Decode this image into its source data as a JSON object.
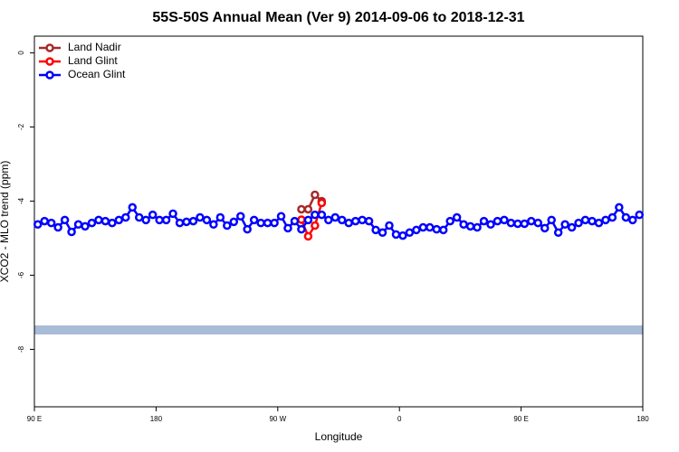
{
  "chart_data": {
    "type": "line",
    "title": "55S-50S Annual Mean (Ver 9)   2014-09-06 to 2018-12-31",
    "x_label": "Longitude",
    "y_label": "XCO2 - MLO trend (ppm)",
    "xlim": [
      90,
      540
    ],
    "xticks": [
      {
        "value": 90,
        "label": "90 E"
      },
      {
        "value": 180,
        "label": "180"
      },
      {
        "value": 270,
        "label": "90 W"
      },
      {
        "value": 360,
        "label": "0"
      },
      {
        "value": 450,
        "label": "90 E"
      },
      {
        "value": 540,
        "label": "180"
      }
    ],
    "ylim": [
      -9.55,
      0.45
    ],
    "yticks": [
      0,
      -2,
      -4,
      -6,
      -8
    ],
    "legend": "top-left",
    "series": [
      {
        "name": "Land Nadir",
        "color": "#a52a2a",
        "x": [
          287.5,
          292.5,
          297.5,
          302.5
        ],
        "values": [
          -4.22,
          -4.22,
          -3.83,
          -4.0
        ]
      },
      {
        "name": "Land Glint",
        "color": "#ff0000",
        "x": [
          287.5,
          292.5,
          297.5,
          302.5
        ],
        "values": [
          -4.5,
          -4.95,
          -4.66,
          -4.05
        ]
      },
      {
        "name": "Ocean Glint",
        "color": "#0000ff",
        "x": [
          92.5,
          97.5,
          102.5,
          107.5,
          112.5,
          117.5,
          122.5,
          127.5,
          132.5,
          137.5,
          142.5,
          147.5,
          152.5,
          157.5,
          162.5,
          167.5,
          172.5,
          177.5,
          182.5,
          187.5,
          192.5,
          197.5,
          202.5,
          207.5,
          212.5,
          217.5,
          222.5,
          227.5,
          232.5,
          237.5,
          242.5,
          247.5,
          252.5,
          257.5,
          262.5,
          267.5,
          272.5,
          277.5,
          282.5,
          287.5,
          292.5,
          297.5,
          302.5,
          307.5,
          312.5,
          317.5,
          322.5,
          327.5,
          332.5,
          337.5,
          342.5,
          347.5,
          352.5,
          357.5,
          362.5,
          367.5,
          372.5,
          377.5,
          382.5,
          387.5,
          392.5,
          397.5,
          402.5,
          407.5,
          412.5,
          417.5,
          422.5,
          427.5,
          432.5,
          437.5,
          442.5,
          447.5,
          452.5,
          457.5,
          462.5,
          467.5,
          472.5,
          477.5,
          482.5,
          487.5,
          492.5,
          497.5,
          502.5,
          507.5,
          512.5,
          517.5,
          522.5,
          527.5,
          532.5,
          537.5
        ],
        "values": [
          -4.63,
          -4.54,
          -4.59,
          -4.71,
          -4.51,
          -4.83,
          -4.63,
          -4.68,
          -4.59,
          -4.51,
          -4.54,
          -4.59,
          -4.51,
          -4.44,
          -4.17,
          -4.44,
          -4.51,
          -4.37,
          -4.51,
          -4.51,
          -4.34,
          -4.59,
          -4.56,
          -4.54,
          -4.44,
          -4.51,
          -4.63,
          -4.44,
          -4.66,
          -4.56,
          -4.41,
          -4.76,
          -4.51,
          -4.59,
          -4.59,
          -4.59,
          -4.41,
          -4.73,
          -4.54,
          -4.76,
          -4.51,
          -4.37,
          -4.37,
          -4.51,
          -4.44,
          -4.51,
          -4.59,
          -4.54,
          -4.51,
          -4.54,
          -4.78,
          -4.85,
          -4.66,
          -4.9,
          -4.93,
          -4.85,
          -4.78,
          -4.71,
          -4.71,
          -4.76,
          -4.78,
          -4.54,
          -4.44,
          -4.63,
          -4.68,
          -4.71,
          -4.54,
          -4.63,
          -4.54,
          -4.51,
          -4.59,
          -4.61,
          -4.61,
          -4.54,
          -4.59,
          -4.73,
          -4.51,
          -4.85,
          -4.63,
          -4.71,
          -4.59,
          -4.51,
          -4.54,
          -4.59,
          -4.51,
          -4.44,
          -4.17,
          -4.44,
          -4.51,
          -4.37
        ]
      }
    ]
  }
}
